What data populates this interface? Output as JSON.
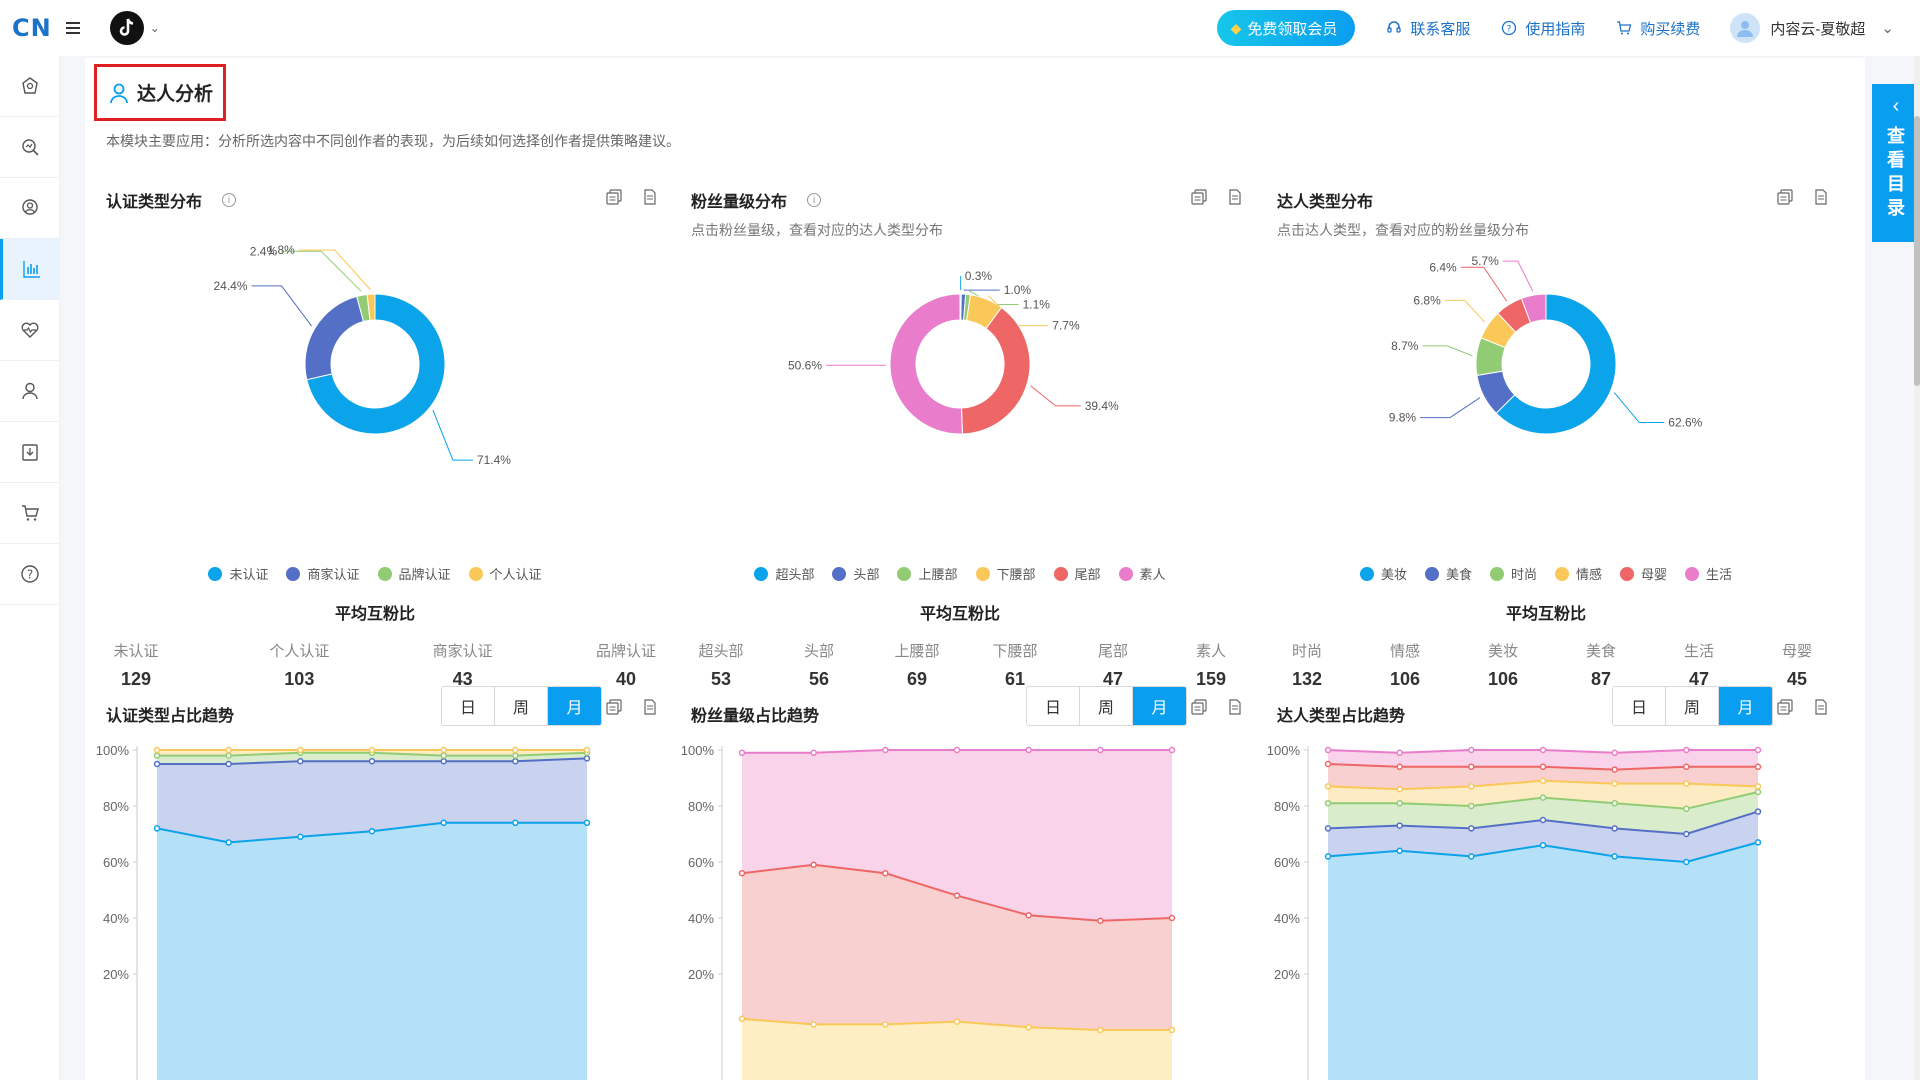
{
  "header": {
    "logo": "CN",
    "vip_button": "免费领取会员",
    "links": [
      "联系客服",
      "使用指南",
      "购买续费"
    ],
    "user_name": "内容云-夏敬超"
  },
  "sidebar": {
    "icons": [
      "home-ai-icon",
      "search-analysis-icon",
      "creator-search-icon",
      "bar-chart-icon",
      "heart-rate-icon",
      "person-icon",
      "download-icon",
      "cart-icon",
      "help-icon"
    ],
    "active_index": 3
  },
  "page": {
    "title": "达人分析",
    "description": "本模块主要应用：分析所选内容中不同创作者的表现，为后续如何选择创作者提供策略建议。"
  },
  "drawer": {
    "label": "查看目录"
  },
  "panels": [
    {
      "title": "认证类型分布",
      "subtitle": "",
      "has_info": true,
      "legend": [
        "未认证",
        "商家认证",
        "品牌认证",
        "个人认证"
      ],
      "avg_title": "平均互粉比",
      "stats": [
        {
          "label": "未认证",
          "value": "129"
        },
        {
          "label": "个人认证",
          "value": "103"
        },
        {
          "label": "商家认证",
          "value": "43"
        },
        {
          "label": "品牌认证",
          "value": "40"
        }
      ]
    },
    {
      "title": "粉丝量级分布",
      "subtitle": "点击粉丝量级，查看对应的达人类型分布",
      "has_info": true,
      "legend": [
        "超头部",
        "头部",
        "上腰部",
        "下腰部",
        "尾部",
        "素人"
      ],
      "avg_title": "平均互粉比",
      "stats": [
        {
          "label": "超头部",
          "value": "53"
        },
        {
          "label": "头部",
          "value": "56"
        },
        {
          "label": "上腰部",
          "value": "69"
        },
        {
          "label": "下腰部",
          "value": "61"
        },
        {
          "label": "尾部",
          "value": "47"
        },
        {
          "label": "素人",
          "value": "159"
        }
      ]
    },
    {
      "title": "达人类型分布",
      "subtitle": "点击达人类型，查看对应的粉丝量级分布",
      "has_info": false,
      "legend": [
        "美妆",
        "美食",
        "时尚",
        "情感",
        "母婴",
        "生活"
      ],
      "avg_title": "平均互粉比",
      "stats": [
        {
          "label": "时尚",
          "value": "132"
        },
        {
          "label": "情感",
          "value": "106"
        },
        {
          "label": "美妆",
          "value": "106"
        },
        {
          "label": "美食",
          "value": "87"
        },
        {
          "label": "生活",
          "value": "47"
        },
        {
          "label": "母婴",
          "value": "45"
        }
      ]
    }
  ],
  "trends": [
    {
      "title": "认证类型占比趋势",
      "tabs": [
        "日",
        "周",
        "月"
      ],
      "active_tab": "月"
    },
    {
      "title": "粉丝量级占比趋势",
      "tabs": [
        "日",
        "周",
        "月"
      ],
      "active_tab": "月"
    },
    {
      "title": "达人类型占比趋势",
      "tabs": [
        "日",
        "周",
        "月"
      ],
      "active_tab": "月"
    }
  ],
  "colors": {
    "accent": "#0a9ef0",
    "palette": [
      "#0ba3ea",
      "#5470c6",
      "#91cc75",
      "#fac858",
      "#ee6666",
      "#ea7ccc"
    ]
  },
  "chart_data": [
    {
      "type": "pie",
      "title": "认证类型分布",
      "donut": true,
      "labels": [
        "未认证",
        "商家认证",
        "品牌认证",
        "个人认证"
      ],
      "values": [
        71.4,
        24.4,
        2.4,
        1.8
      ],
      "value_labels": [
        "71.4%",
        "24.4%",
        "2.4%",
        "1.8%"
      ]
    },
    {
      "type": "pie",
      "title": "粉丝量级分布",
      "donut": true,
      "labels": [
        "超头部",
        "头部",
        "上腰部",
        "下腰部",
        "尾部",
        "素人"
      ],
      "values": [
        0.3,
        1.0,
        1.1,
        7.7,
        39.4,
        50.6
      ],
      "value_labels": [
        "0.3%",
        "1.0%",
        "1.1%",
        "7.7%",
        "39.4%",
        "50.6%"
      ]
    },
    {
      "type": "pie",
      "title": "达人类型分布",
      "donut": true,
      "labels": [
        "美妆",
        "美食",
        "时尚",
        "情感",
        "母婴",
        "生活"
      ],
      "values": [
        62.6,
        9.8,
        8.7,
        6.8,
        6.4,
        5.7
      ],
      "value_labels": [
        "62.6%",
        "9.8%",
        "8.7%",
        "6.8%",
        "6.4%",
        "5.7%"
      ]
    },
    {
      "type": "area",
      "stacked": true,
      "title": "认证类型占比趋势",
      "y_ticks": [
        "100%",
        "80%",
        "60%",
        "40%",
        "20%"
      ],
      "ylim": [
        0,
        100
      ],
      "series": [
        {
          "name": "未认证",
          "values": [
            72,
            67,
            69,
            71,
            74,
            74,
            74
          ]
        },
        {
          "name": "商家认证",
          "values": [
            95,
            95,
            96,
            96,
            96,
            96,
            97
          ]
        },
        {
          "name": "品牌认证",
          "values": [
            98,
            98,
            99,
            99,
            98,
            98,
            99
          ]
        },
        {
          "name": "个人认证",
          "values": [
            100,
            100,
            100,
            100,
            100,
            100,
            100
          ]
        }
      ]
    },
    {
      "type": "area",
      "stacked": true,
      "title": "粉丝量级占比趋势",
      "y_ticks": [
        "100%",
        "80%",
        "60%",
        "40%",
        "20%"
      ],
      "ylim": [
        0,
        100
      ],
      "series": [
        {
          "name": "下腰部",
          "values": [
            4,
            2,
            2,
            3,
            1,
            0,
            0
          ]
        },
        {
          "name": "尾部",
          "values": [
            56,
            59,
            56,
            48,
            41,
            39,
            40
          ]
        },
        {
          "name": "素人",
          "values": [
            99,
            99,
            100,
            100,
            100,
            100,
            100
          ]
        }
      ]
    },
    {
      "type": "area",
      "stacked": true,
      "title": "达人类型占比趋势",
      "y_ticks": [
        "100%",
        "80%",
        "60%",
        "40%",
        "20%"
      ],
      "ylim": [
        0,
        100
      ],
      "series": [
        {
          "name": "美妆",
          "values": [
            62,
            64,
            62,
            66,
            62,
            60,
            67
          ]
        },
        {
          "name": "美食",
          "values": [
            72,
            73,
            72,
            75,
            72,
            70,
            78
          ]
        },
        {
          "name": "时尚",
          "values": [
            81,
            81,
            80,
            83,
            81,
            79,
            85
          ]
        },
        {
          "name": "情感",
          "values": [
            87,
            86,
            87,
            89,
            88,
            88,
            87
          ]
        },
        {
          "name": "母婴",
          "values": [
            95,
            94,
            94,
            94,
            93,
            94,
            94
          ]
        },
        {
          "name": "生活",
          "values": [
            100,
            99,
            100,
            100,
            99,
            100,
            100
          ]
        }
      ]
    }
  ]
}
